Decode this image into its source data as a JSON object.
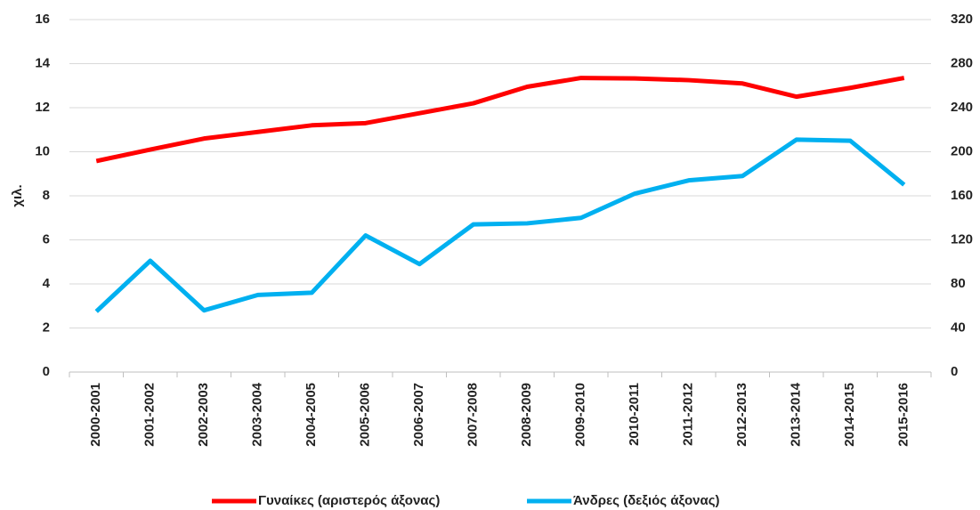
{
  "chart_data": {
    "type": "line",
    "y_label": "χιλ.",
    "categories": [
      "2000-2001",
      "2001-2002",
      "2002-2003",
      "2003-2004",
      "2004-2005",
      "2005-2006",
      "2006-2007",
      "2007-2008",
      "2008-2009",
      "2009-2010",
      "2010-2011",
      "2011-2012",
      "2012-2013",
      "2013-2014",
      "2014-2015",
      "2015-2016"
    ],
    "series": [
      {
        "name": "Γυναίκες (αριστερός άξονας)",
        "color": "#ff0000",
        "values": [
          9.58,
          10.1,
          10.6,
          10.9,
          11.2,
          11.3,
          11.75,
          12.2,
          12.95,
          13.35,
          13.33,
          13.25,
          13.1,
          12.5,
          12.9,
          13.35
        ]
      },
      {
        "name": "Άνδρες (δεξιός άξονας)",
        "color": "#00b0f0",
        "axis": "y2",
        "values": [
          55,
          101,
          56,
          70,
          72,
          124,
          98,
          134,
          135,
          140,
          162,
          174,
          178,
          211,
          210,
          170
        ]
      }
    ],
    "ylim": [
      0,
      16
    ],
    "yticks": [
      0,
      2,
      4,
      6,
      8,
      10,
      12,
      14,
      16
    ],
    "y2lim": [
      0,
      320
    ],
    "y2ticks": [
      0,
      40,
      80,
      120,
      160,
      200,
      240,
      280,
      320
    ],
    "grid": true,
    "legend": "bottom"
  }
}
